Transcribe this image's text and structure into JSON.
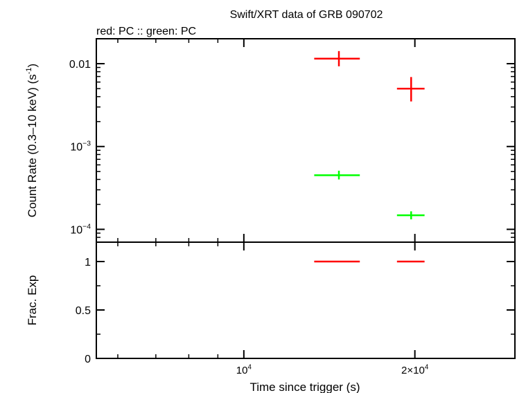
{
  "chart_data": {
    "type": "scatter",
    "title": "Swift/XRT data of GRB 090702",
    "legend_text": "red: PC  :: green: PC",
    "xlabel": "Time since trigger (s)",
    "x_scale": "log",
    "xlim": [
      5500,
      30000
    ],
    "x_ticks": [
      {
        "value": 10000,
        "label": "10",
        "sup": "4"
      },
      {
        "value": 20000,
        "label": "2×10",
        "sup": "4"
      }
    ],
    "panels": [
      {
        "id": "rate",
        "ylabel": "Count Rate (0.3–10 keV) (s",
        "ylabel_sup": "-1",
        "ylabel_tail": ")",
        "y_scale": "log",
        "ylim": [
          7e-05,
          0.02
        ],
        "y_ticks": [
          {
            "value": 0.01,
            "label": "0.01",
            "sup": ""
          },
          {
            "value": 0.001,
            "label": "10",
            "sup": "−3"
          },
          {
            "value": 0.0001,
            "label": "10",
            "sup": "−4"
          }
        ],
        "series": [
          {
            "color": "#ff0000",
            "points": [
              {
                "x": 14700,
                "xlo": 13300,
                "xhi": 16000,
                "y": 0.0115,
                "ylo": 0.0093,
                "yhi": 0.0142
              },
              {
                "x": 19700,
                "xlo": 18600,
                "xhi": 20800,
                "y": 0.005,
                "ylo": 0.0035,
                "yhi": 0.0069
              }
            ]
          },
          {
            "color": "#00ff00",
            "points": [
              {
                "x": 14700,
                "xlo": 13300,
                "xhi": 16000,
                "y": 0.00045,
                "ylo": 0.0004,
                "yhi": 0.00051
              },
              {
                "x": 19700,
                "xlo": 18600,
                "xhi": 20800,
                "y": 0.000148,
                "ylo": 0.000132,
                "yhi": 0.000165
              }
            ]
          }
        ]
      },
      {
        "id": "fracexp",
        "ylabel": "Frac. Exp",
        "y_scale": "linear",
        "ylim": [
          0,
          1.2
        ],
        "y_ticks": [
          {
            "value": 0,
            "label": "0"
          },
          {
            "value": 0.5,
            "label": "0.5"
          },
          {
            "value": 1,
            "label": "1"
          }
        ],
        "series": [
          {
            "color": "#ff0000",
            "points": [
              {
                "x": 14700,
                "xlo": 13300,
                "xhi": 16000,
                "y": 1
              },
              {
                "x": 19700,
                "xlo": 18600,
                "xhi": 20800,
                "y": 1
              }
            ]
          }
        ]
      }
    ]
  }
}
